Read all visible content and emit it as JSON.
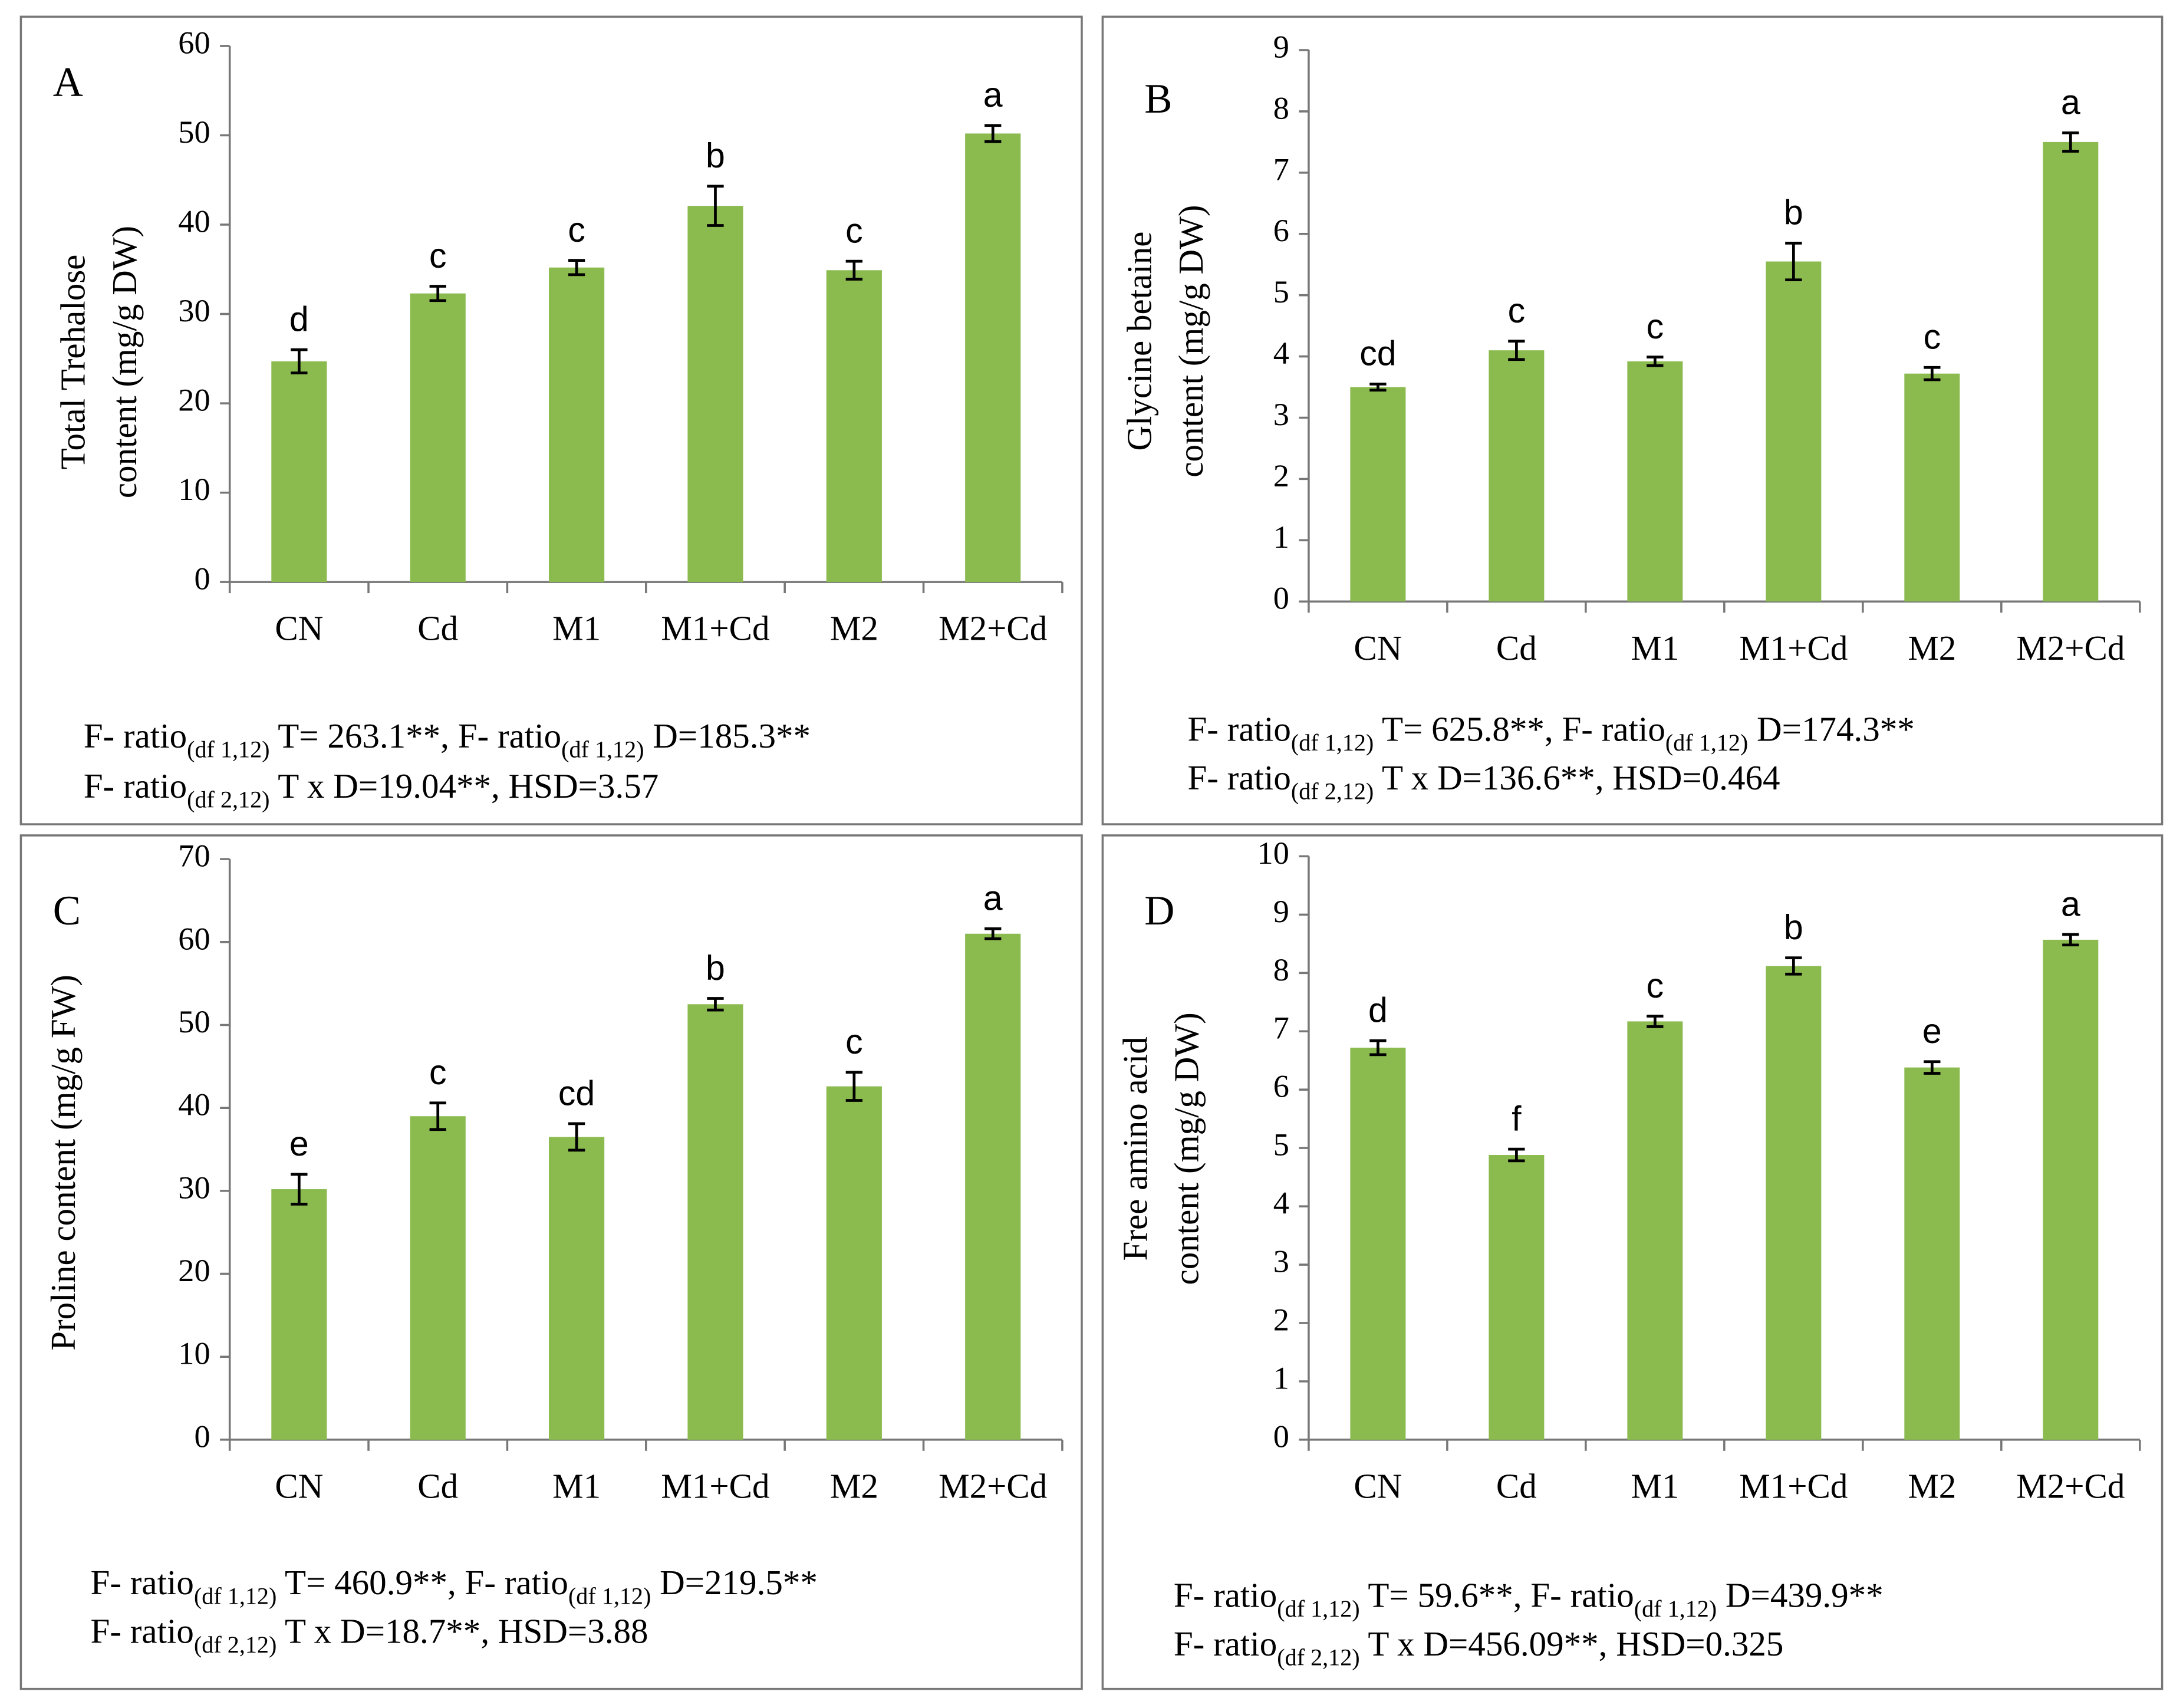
{
  "chart_data": [
    {
      "type": "bar",
      "panel": "A",
      "ylabel": [
        "Total Trehalose",
        "content (mg/g DW)"
      ],
      "categories": [
        "CN",
        "Cd",
        "M1",
        "M1+Cd",
        "M2",
        "M2+Cd"
      ],
      "values": [
        24.7,
        32.3,
        35.2,
        42.1,
        34.9,
        50.2
      ],
      "errors": [
        1.3,
        0.8,
        0.8,
        2.2,
        1.0,
        0.9
      ],
      "annotations": [
        "d",
        "c",
        "c",
        "b",
        "c",
        "a"
      ],
      "color": "#8bbb4f",
      "ylim": [
        0,
        60
      ],
      "yticks": [
        0,
        10,
        20,
        30,
        40,
        50,
        60
      ],
      "notes": [
        [
          {
            "text": "F- ratio"
          },
          {
            "sub": "(df 1,12)"
          },
          {
            "text": " T= 263.1**, F- ratio"
          },
          {
            "sub": "(df 1,12)"
          },
          {
            "text": "  D=185.3**"
          }
        ],
        [
          {
            "text": "F- ratio"
          },
          {
            "sub": "(df 2,12)"
          },
          {
            "text": " T x D=19.04**, HSD=3.57"
          }
        ]
      ]
    },
    {
      "type": "bar",
      "panel": "B",
      "ylabel": [
        "Glycine betaine",
        "content (mg/g DW)"
      ],
      "categories": [
        "CN",
        "Cd",
        "M1",
        "M1+Cd",
        "M2",
        "M2+Cd"
      ],
      "values": [
        3.5,
        4.1,
        3.92,
        5.55,
        3.72,
        7.5
      ],
      "errors": [
        0.05,
        0.15,
        0.07,
        0.3,
        0.1,
        0.15
      ],
      "annotations": [
        "cd",
        "c",
        "c",
        "b",
        "c",
        "a"
      ],
      "color": "#8bbb4f",
      "ylim": [
        0,
        9
      ],
      "yticks": [
        0,
        1,
        2,
        3,
        4,
        5,
        6,
        7,
        8,
        9
      ],
      "notes": [
        [
          {
            "text": "F- ratio"
          },
          {
            "sub": "(df 1,12)"
          },
          {
            "text": " T= 625.8**, F- ratio"
          },
          {
            "sub": "(df 1,12)"
          },
          {
            "text": " D=174.3**"
          }
        ],
        [
          {
            "text": "F- ratio"
          },
          {
            "sub": "(df 2,12)"
          },
          {
            "text": " T x D=136.6**, HSD=0.464"
          }
        ]
      ]
    },
    {
      "type": "bar",
      "panel": "C",
      "ylabel": [
        "Proline content (mg/g FW)"
      ],
      "categories": [
        "CN",
        "Cd",
        "M1",
        "M1+Cd",
        "M2",
        "M2+Cd"
      ],
      "values": [
        30.2,
        39,
        36.5,
        52.5,
        42.6,
        61
      ],
      "errors": [
        1.8,
        1.6,
        1.6,
        0.7,
        1.7,
        0.6
      ],
      "annotations": [
        "e",
        "c",
        "cd",
        "b",
        "c",
        "a"
      ],
      "color": "#8bbb4f",
      "ylim": [
        0,
        70
      ],
      "yticks": [
        0,
        10,
        20,
        30,
        40,
        50,
        60,
        70
      ],
      "notes": [
        [
          {
            "text": "F- ratio"
          },
          {
            "sub": "(df 1,12)"
          },
          {
            "text": " T= 460.9**, F- ratio"
          },
          {
            "sub": "(df 1,12)"
          },
          {
            "text": "  D=219.5**"
          }
        ],
        [
          {
            "text": "F- ratio"
          },
          {
            "sub": "(df 2,12)"
          },
          {
            "text": " T x D=18.7**, HSD=3.88"
          }
        ]
      ]
    },
    {
      "type": "bar",
      "panel": "D",
      "ylabel": [
        "Free amino acid",
        "content (mg/g DW)"
      ],
      "categories": [
        "CN",
        "Cd",
        "M1",
        "M1+Cd",
        "M2",
        "M2+Cd"
      ],
      "values": [
        6.72,
        4.88,
        7.17,
        8.12,
        6.38,
        8.57
      ],
      "errors": [
        0.12,
        0.1,
        0.09,
        0.14,
        0.1,
        0.09
      ],
      "annotations": [
        "d",
        "f",
        "c",
        "b",
        "e",
        "a"
      ],
      "color": "#8bbb4f",
      "ylim": [
        0,
        10
      ],
      "yticks": [
        0,
        1,
        2,
        3,
        4,
        5,
        6,
        7,
        8,
        9,
        10
      ],
      "notes": [
        [
          {
            "text": "F- ratio"
          },
          {
            "sub": "(df 1,12)"
          },
          {
            "text": " T= 59.6**, F- ratio"
          },
          {
            "sub": "(df 1,12)"
          },
          {
            "text": "  D=439.9**"
          }
        ],
        [
          {
            "text": "F- ratio"
          },
          {
            "sub": "(df 2,12)"
          },
          {
            "text": " T x D=456.09**, HSD=0.325"
          }
        ]
      ]
    }
  ]
}
